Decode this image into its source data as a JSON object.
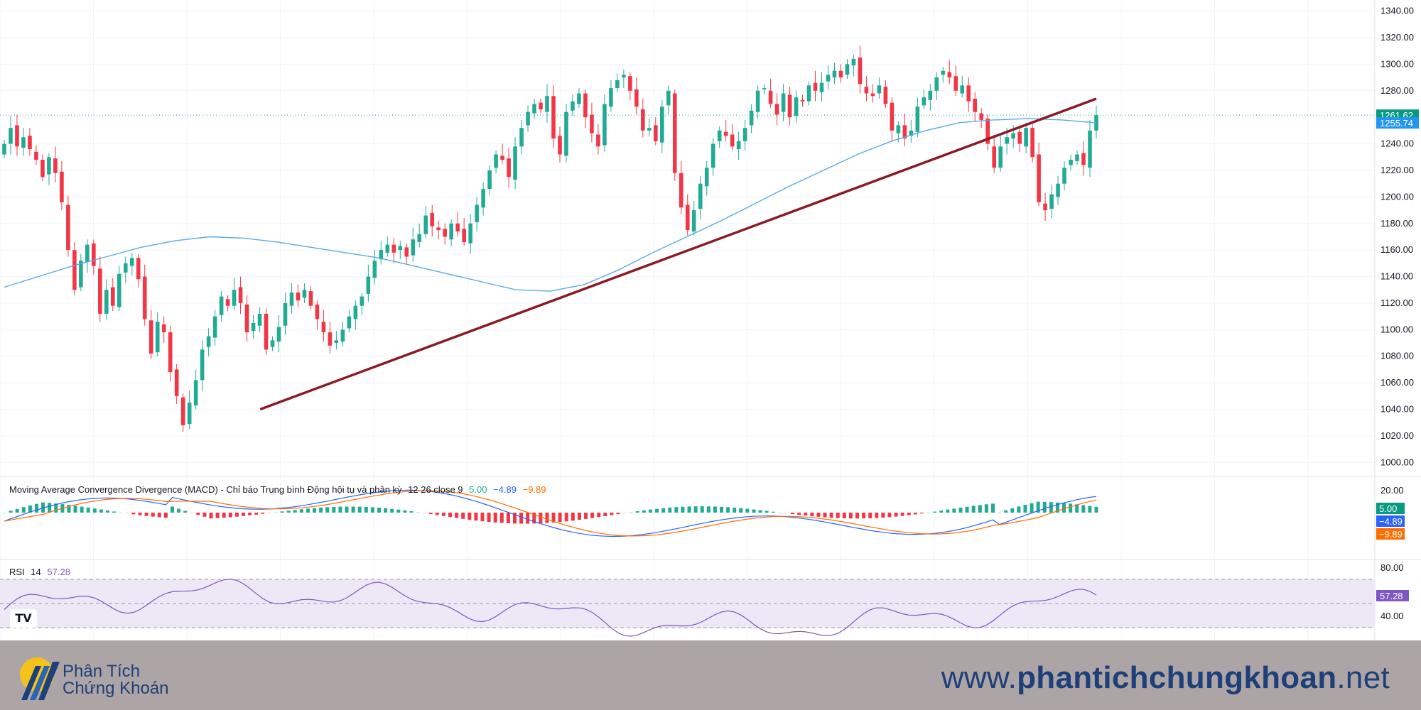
{
  "chart_data": [
    {
      "type": "candlestick",
      "title": "",
      "price_axis": {
        "ticks": [
          "1340.00",
          "1320.00",
          "1300.00",
          "1280.00",
          "1260.00",
          "1240.00",
          "1220.00",
          "1200.00",
          "1180.00",
          "1160.00",
          "1140.00",
          "1120.00",
          "1100.00",
          "1080.00",
          "1060.00",
          "1040.00",
          "1020.00",
          "1000.00"
        ],
        "ylim": [
          990,
          1343
        ]
      },
      "last_price_label": "1261.62",
      "ma_label": "1255.74",
      "colors": {
        "up": "#22ab94",
        "down": "#f23645",
        "ma": "#5aa9e6",
        "trendline": "#8b1a24",
        "price_line": "#22ab94"
      },
      "closes": [
        1240,
        1252,
        1238,
        1245,
        1236,
        1228,
        1215,
        1230,
        1218,
        1196,
        1160,
        1130,
        1152,
        1164,
        1148,
        1112,
        1130,
        1118,
        1142,
        1150,
        1154,
        1138,
        1108,
        1082,
        1106,
        1098,
        1068,
        1050,
        1028,
        1045,
        1062,
        1085,
        1095,
        1110,
        1125,
        1118,
        1130,
        1120,
        1098,
        1105,
        1112,
        1085,
        1092,
        1102,
        1120,
        1128,
        1122,
        1130,
        1118,
        1108,
        1098,
        1088,
        1092,
        1100,
        1110,
        1118,
        1125,
        1140,
        1152,
        1160,
        1164,
        1158,
        1163,
        1155,
        1168,
        1172,
        1186,
        1178,
        1175,
        1170,
        1180,
        1174,
        1166,
        1180,
        1194,
        1206,
        1220,
        1232,
        1228,
        1215,
        1238,
        1252,
        1264,
        1270,
        1266,
        1276,
        1244,
        1232,
        1264,
        1272,
        1278,
        1260,
        1248,
        1238,
        1270,
        1282,
        1288,
        1292,
        1280,
        1268,
        1250,
        1252,
        1242,
        1268,
        1280,
        1218,
        1192,
        1175,
        1190,
        1210,
        1222,
        1240,
        1250,
        1246,
        1238,
        1242,
        1252,
        1265,
        1280,
        1282,
        1270,
        1262,
        1278,
        1260,
        1275,
        1272,
        1284,
        1280,
        1286,
        1292,
        1295,
        1290,
        1300,
        1304,
        1285,
        1278,
        1276,
        1284,
        1270,
        1250,
        1254,
        1244,
        1250,
        1268,
        1275,
        1280,
        1290,
        1295,
        1290,
        1280,
        1284,
        1272,
        1264,
        1258,
        1240,
        1222,
        1238,
        1245,
        1248,
        1240,
        1252,
        1230,
        1196,
        1190,
        1202,
        1210,
        1222,
        1228,
        1232,
        1224,
        1250,
        1261.62
      ],
      "ma": [
        1132,
        1140,
        1148,
        1155,
        1162,
        1167,
        1170,
        1169,
        1166,
        1162,
        1158,
        1154,
        1148,
        1142,
        1136,
        1130,
        1129,
        1134,
        1145,
        1158,
        1170,
        1182,
        1195,
        1208,
        1220,
        1232,
        1242,
        1250,
        1256,
        1258,
        1259,
        1258,
        1255.74
      ],
      "trendline": {
        "from": [
          15,
          1040
        ],
        "to": [
          57,
          1274
        ]
      }
    },
    {
      "type": "macd",
      "label": "Moving Average Convergence Divergence (MACD) - Chỉ báo Trung bình Động hội tụ và phân kỳ",
      "params": "12 26 close 9",
      "histogram_value": "5.00",
      "macd_value": "−4.89",
      "signal_value": "−9.89",
      "axis_tick": "20.00",
      "colors": {
        "hist_up": "#22ab94",
        "hist_down": "#f23645",
        "macd": "#2962ff",
        "signal": "#ff6d00"
      }
    },
    {
      "type": "rsi",
      "label": "RSI",
      "period": "14",
      "value": "57.28",
      "axis_ticks": [
        "80.00",
        "40.00"
      ],
      "colors": {
        "line": "#7e57c2",
        "band": "#ede7f6"
      }
    }
  ],
  "footer": {
    "brand_line1": "Phân Tích",
    "brand_line2": "Chứng Khoán",
    "site_prefix": "www.",
    "site_main": "phantichchungkhoan",
    "site_suffix": ".net"
  },
  "tv_logo": "TV"
}
